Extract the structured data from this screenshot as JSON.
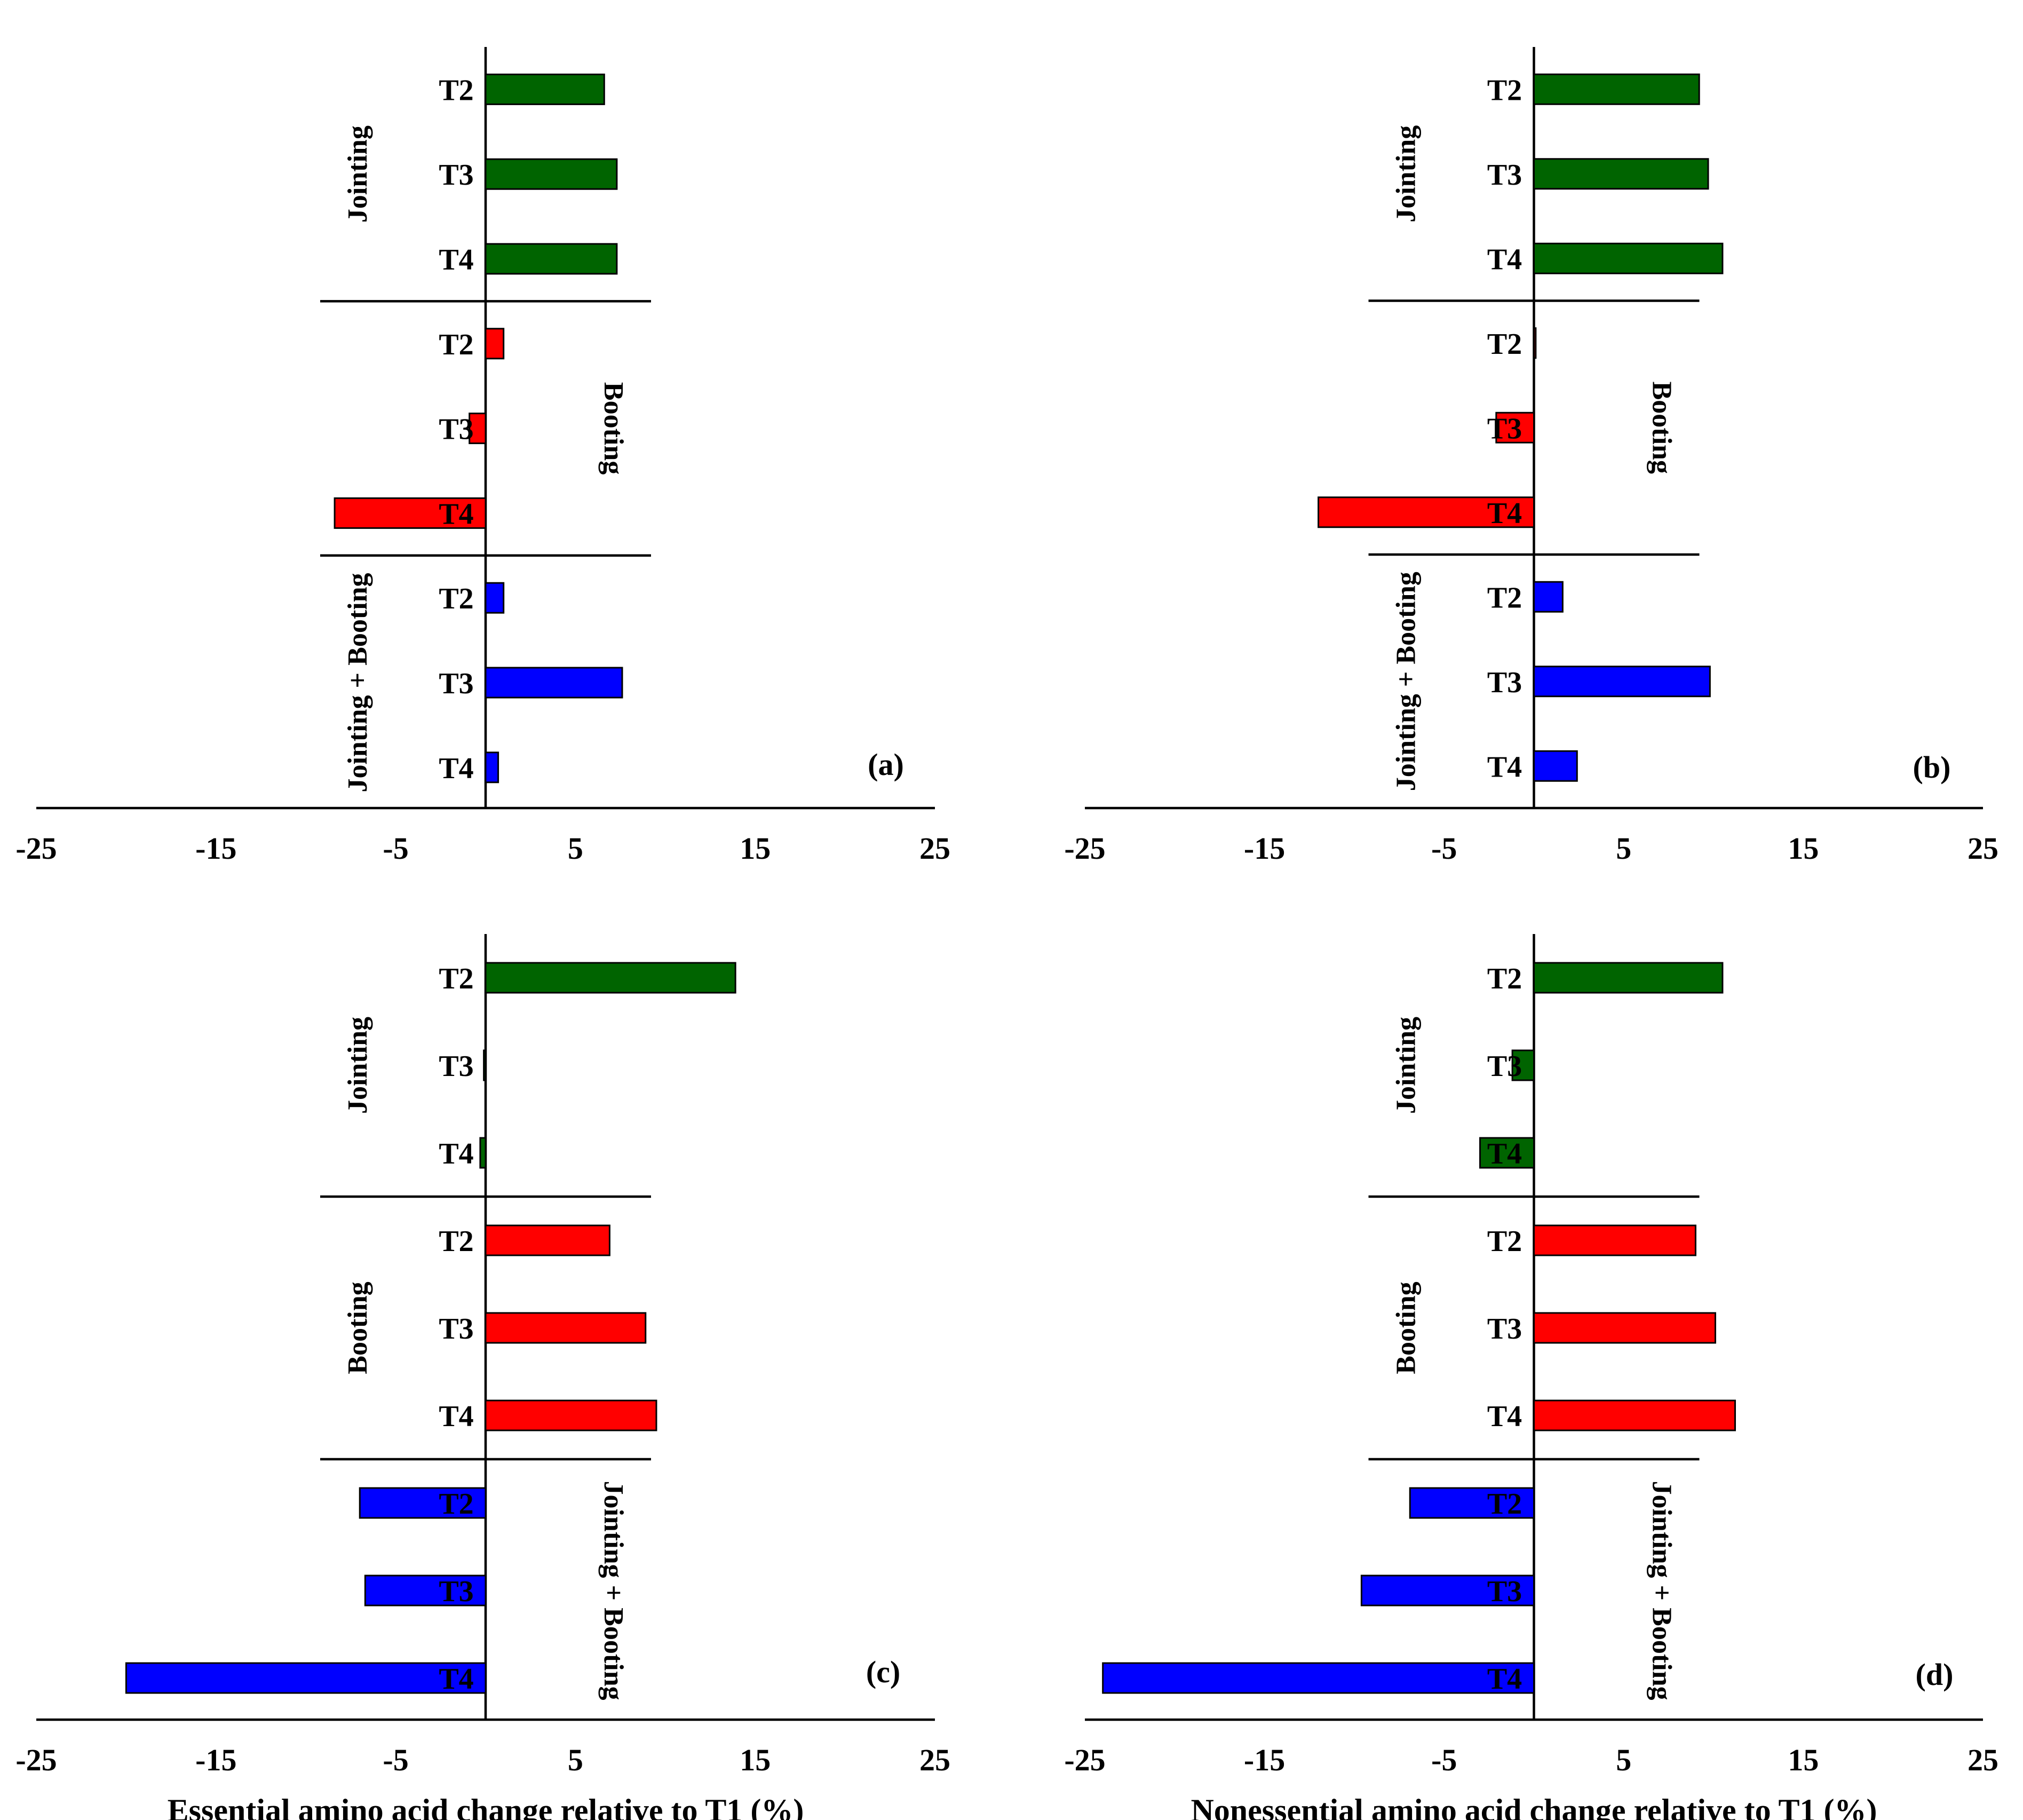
{
  "chart_data": [
    {
      "type": "bar",
      "orientation": "horizontal",
      "panel_label": "(a)",
      "xlabel": "",
      "xlim": [
        -25,
        25
      ],
      "xticks": [
        -25,
        -15,
        -5,
        5,
        15,
        25
      ],
      "tick_labels": [
        "-25",
        "-15",
        "-5",
        "5",
        "15",
        "25"
      ],
      "groups": [
        {
          "name": "Jointing",
          "color": "#006400",
          "label_side": "left",
          "bars": [
            {
              "category": "T2",
              "value": 6.6
            },
            {
              "category": "T3",
              "value": 7.3
            },
            {
              "category": "T4",
              "value": 7.3
            }
          ]
        },
        {
          "name": "Booting",
          "color": "#ff0000",
          "label_side": "right",
          "bars": [
            {
              "category": "T2",
              "value": 1.0
            },
            {
              "category": "T3",
              "value": -0.9
            },
            {
              "category": "T4",
              "value": -8.4
            }
          ]
        },
        {
          "name": "Jointing + Booting",
          "color": "#0000ff",
          "label_side": "left",
          "bars": [
            {
              "category": "T2",
              "value": 1.0
            },
            {
              "category": "T3",
              "value": 7.6
            },
            {
              "category": "T4",
              "value": 0.7
            }
          ]
        }
      ]
    },
    {
      "type": "bar",
      "orientation": "horizontal",
      "panel_label": "(b)",
      "xlabel": "",
      "xlim": [
        -25,
        25
      ],
      "xticks": [
        -25,
        -15,
        -5,
        5,
        15,
        25
      ],
      "tick_labels": [
        "-25",
        "-15",
        "-5",
        "5",
        "15",
        "25"
      ],
      "groups": [
        {
          "name": "Jointing",
          "color": "#006400",
          "label_side": "left",
          "bars": [
            {
              "category": "T2",
              "value": 9.2
            },
            {
              "category": "T3",
              "value": 9.7
            },
            {
              "category": "T4",
              "value": 10.5
            }
          ]
        },
        {
          "name": "Booting",
          "color": "#ff0000",
          "label_side": "right",
          "bars": [
            {
              "category": "T2",
              "value": 0.1
            },
            {
              "category": "T3",
              "value": -2.1
            },
            {
              "category": "T4",
              "value": -12.0
            }
          ]
        },
        {
          "name": "Jointing + Booting",
          "color": "#0000ff",
          "label_side": "left",
          "bars": [
            {
              "category": "T2",
              "value": 1.6
            },
            {
              "category": "T3",
              "value": 9.8
            },
            {
              "category": "T4",
              "value": 2.4
            }
          ]
        }
      ]
    },
    {
      "type": "bar",
      "orientation": "horizontal",
      "panel_label": "(c)",
      "xlabel": "Essential amino acid change relative to T1 (%)",
      "xlim": [
        -25,
        25
      ],
      "xticks": [
        -25,
        -15,
        -5,
        5,
        15,
        25
      ],
      "tick_labels": [
        "-25",
        "-15",
        "-5",
        "5",
        "15",
        "25"
      ],
      "groups": [
        {
          "name": "Jointing",
          "color": "#006400",
          "label_side": "left",
          "bars": [
            {
              "category": "T2",
              "value": 13.9
            },
            {
              "category": "T3",
              "value": -0.1
            },
            {
              "category": "T4",
              "value": -0.3
            }
          ]
        },
        {
          "name": "Booting",
          "color": "#ff0000",
          "label_side": "left",
          "bars": [
            {
              "category": "T2",
              "value": 6.9
            },
            {
              "category": "T3",
              "value": 8.9
            },
            {
              "category": "T4",
              "value": 9.5
            }
          ]
        },
        {
          "name": "Jointing + Booting",
          "color": "#0000ff",
          "label_side": "right",
          "bars": [
            {
              "category": "T2",
              "value": -7.0
            },
            {
              "category": "T3",
              "value": -6.7
            },
            {
              "category": "T4",
              "value": -20.0
            }
          ]
        }
      ]
    },
    {
      "type": "bar",
      "orientation": "horizontal",
      "panel_label": "(d)",
      "xlabel": "Nonessential amino acid change relative to T1 (%)",
      "xlim": [
        -25,
        25
      ],
      "xticks": [
        -25,
        -15,
        -5,
        5,
        15,
        25
      ],
      "tick_labels": [
        "-25",
        "-15",
        "-5",
        "5",
        "15",
        "25"
      ],
      "groups": [
        {
          "name": "Jointing",
          "color": "#006400",
          "label_side": "left",
          "bars": [
            {
              "category": "T2",
              "value": 10.5
            },
            {
              "category": "T3",
              "value": -1.2
            },
            {
              "category": "T4",
              "value": -3.0
            }
          ]
        },
        {
          "name": "Booting",
          "color": "#ff0000",
          "label_side": "left",
          "bars": [
            {
              "category": "T2",
              "value": 9.0
            },
            {
              "category": "T3",
              "value": 10.1
            },
            {
              "category": "T4",
              "value": 11.2
            }
          ]
        },
        {
          "name": "Jointing + Booting",
          "color": "#0000ff",
          "label_side": "right",
          "bars": [
            {
              "category": "T2",
              "value": -6.9
            },
            {
              "category": "T3",
              "value": -9.6
            },
            {
              "category": "T4",
              "value": -24.0
            }
          ]
        }
      ]
    }
  ]
}
